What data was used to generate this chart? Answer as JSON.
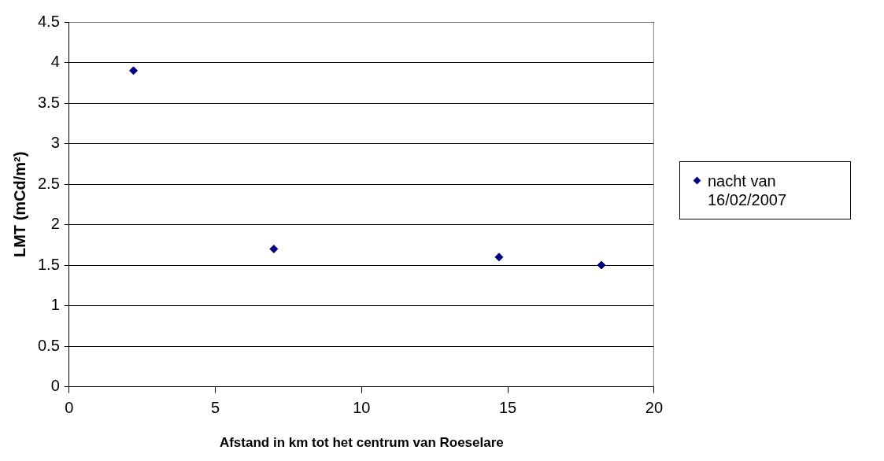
{
  "chart_data": {
    "type": "scatter",
    "xlabel": "Afstand in km tot het centrum van Roeselare",
    "ylabel": "LMT (mCd/m²)",
    "x": [
      2.2,
      7,
      14.7,
      18.2
    ],
    "series": [
      {
        "name": "nacht van 16/02/2007",
        "color": "#000080",
        "values": [
          3.9,
          1.7,
          1.6,
          1.5
        ]
      }
    ],
    "xlim": [
      0,
      20
    ],
    "xticks": [
      0,
      5,
      10,
      15,
      20
    ],
    "ylim": [
      0,
      4.5
    ],
    "yticks": [
      0,
      0.5,
      1,
      1.5,
      2,
      2.5,
      3,
      3.5,
      4,
      4.5
    ],
    "grid": "y",
    "legend": "right",
    "marker": "diamond"
  }
}
